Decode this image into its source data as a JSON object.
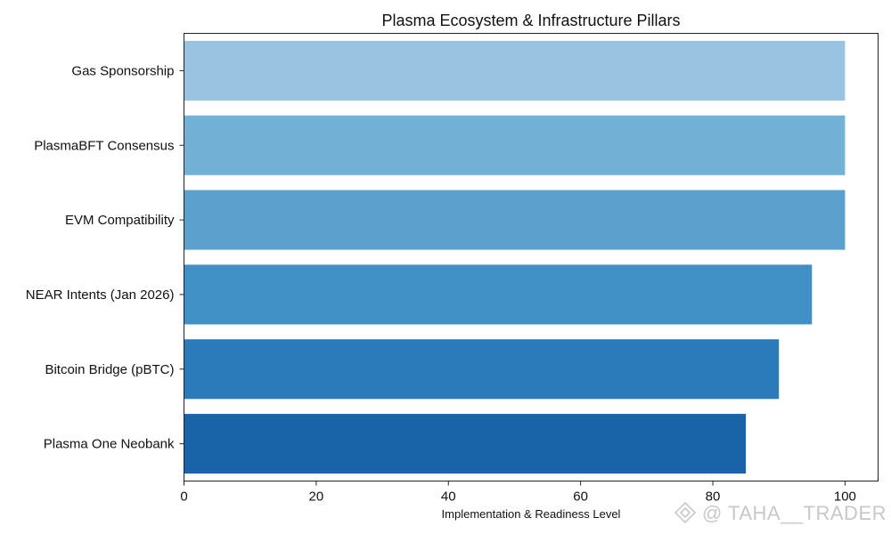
{
  "chart_data": {
    "type": "bar",
    "orientation": "horizontal",
    "title": "Plasma Ecosystem & Infrastructure Pillars",
    "xlabel": "Implementation & Readiness Level",
    "ylabel": "",
    "categories": [
      "Gas Sponsorship",
      "PlasmaBFT Consensus",
      "EVM Compatibility",
      "NEAR Intents (Jan 2026)",
      "Bitcoin Bridge (pBTC)",
      "Plasma One Neobank"
    ],
    "values": [
      100,
      100,
      100,
      95,
      90,
      85
    ],
    "colors": [
      "#98c4e1",
      "#73b2d7",
      "#5aa0cd",
      "#4090c6",
      "#2b7bba",
      "#1a63a9"
    ],
    "xlim": [
      0,
      105
    ],
    "xticks": [
      0,
      20,
      40,
      60,
      80,
      100
    ],
    "grid": false,
    "legend": "none"
  },
  "watermark": {
    "text": "@ TAHA__TRADER",
    "logo_icon": "binance-diamond-icon"
  }
}
